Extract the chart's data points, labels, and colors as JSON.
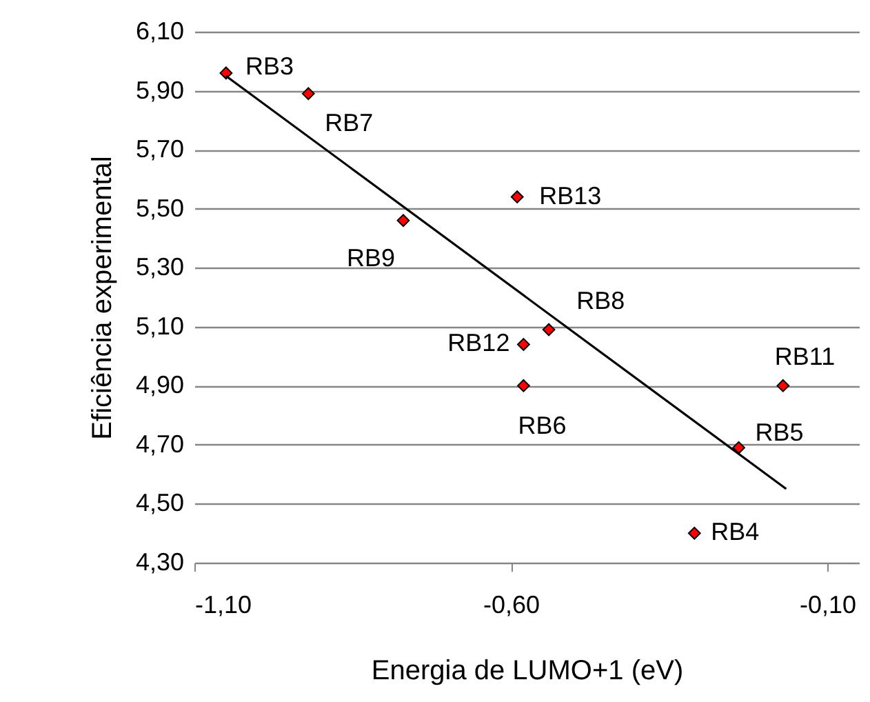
{
  "chart_data": {
    "type": "scatter",
    "xlabel": "Energia de LUMO+1 (eV)",
    "ylabel": "Eficiência experimental",
    "xlim": [
      -1.1,
      -0.05
    ],
    "xticks": [
      {
        "value": -1.1,
        "label": "-1,10"
      },
      {
        "value": -0.6,
        "label": "-0,60"
      },
      {
        "value": -0.1,
        "label": "-0,10"
      }
    ],
    "ylim": [
      4.3,
      6.1
    ],
    "yticks": [
      {
        "value": 4.3,
        "label": "4,30"
      },
      {
        "value": 4.5,
        "label": "4,50"
      },
      {
        "value": 4.7,
        "label": "4,70"
      },
      {
        "value": 4.9,
        "label": "4,90"
      },
      {
        "value": 5.1,
        "label": "5,10"
      },
      {
        "value": 5.3,
        "label": "5,30"
      },
      {
        "value": 5.5,
        "label": "5,50"
      },
      {
        "value": 5.7,
        "label": "5,70"
      },
      {
        "value": 5.9,
        "label": "5,90"
      },
      {
        "value": 6.1,
        "label": "6,10"
      }
    ],
    "grid": "y",
    "series": [
      {
        "type": "scatter",
        "marker": "diamond",
        "color": "#ff0000",
        "x": [
          -1.05,
          -0.92,
          -0.77,
          -0.59,
          -0.54,
          -0.58,
          -0.58,
          -0.17,
          -0.24,
          -0.31
        ],
        "values": [
          5.96,
          5.89,
          5.46,
          5.54,
          5.09,
          5.04,
          4.9,
          4.9,
          4.69,
          4.4
        ]
      },
      {
        "type": "line",
        "marker": "none",
        "color": "#000000",
        "x": [
          -1.05,
          -0.165
        ],
        "values": [
          5.95,
          4.55
        ]
      }
    ],
    "annotations": [
      {
        "text": "RB3",
        "x": -1.05,
        "y": 5.96
      },
      {
        "text": "RB7",
        "x": -0.92,
        "y": 5.89
      },
      {
        "text": "RB9",
        "x": -0.77,
        "y": 5.46
      },
      {
        "text": "RB13",
        "x": -0.59,
        "y": 5.54
      },
      {
        "text": "RB8",
        "x": -0.54,
        "y": 5.09
      },
      {
        "text": "RB12",
        "x": -0.58,
        "y": 5.04
      },
      {
        "text": "RB6",
        "x": -0.58,
        "y": 4.9
      },
      {
        "text": "RB11",
        "x": -0.17,
        "y": 4.9
      },
      {
        "text": "RB5",
        "x": -0.24,
        "y": 4.69
      },
      {
        "text": "RB4",
        "x": -0.31,
        "y": 4.4
      }
    ]
  }
}
